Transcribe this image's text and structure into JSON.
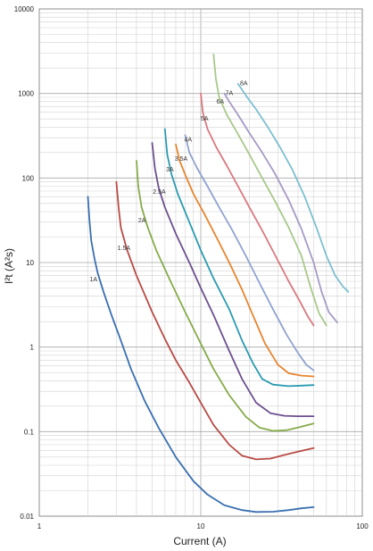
{
  "chart_data": {
    "type": "line",
    "title": "",
    "xlabel": "Current (A)",
    "ylabel": "I²t (A²s)",
    "x_scale": "log",
    "y_scale": "log",
    "xlim": [
      1,
      100
    ],
    "ylim": [
      0.01,
      10000
    ],
    "x_ticks": [
      "1",
      "10",
      "100"
    ],
    "y_ticks": [
      "0.01",
      "0.1",
      "1",
      "10",
      "100",
      "1000",
      "10000"
    ],
    "grid": true,
    "legend": "none",
    "series": [
      {
        "name": "1A",
        "color": "#3a6fb0",
        "label_at": [
          2.05,
          6.0
        ],
        "points": [
          [
            2.0,
            60
          ],
          [
            2.05,
            30
          ],
          [
            2.1,
            18
          ],
          [
            2.2,
            11
          ],
          [
            2.3,
            7.5
          ],
          [
            2.5,
            4.5
          ],
          [
            2.8,
            2.4
          ],
          [
            3.2,
            1.2
          ],
          [
            3.7,
            0.55
          ],
          [
            4.5,
            0.23
          ],
          [
            5.5,
            0.11
          ],
          [
            7,
            0.05
          ],
          [
            9,
            0.026
          ],
          [
            11,
            0.018
          ],
          [
            14,
            0.0135
          ],
          [
            18,
            0.0118
          ],
          [
            22,
            0.0112
          ],
          [
            28,
            0.0113
          ],
          [
            35,
            0.0118
          ],
          [
            42,
            0.0124
          ],
          [
            50,
            0.0128
          ]
        ]
      },
      {
        "name": "1.5A",
        "color": "#b94a44",
        "label_at": [
          3.05,
          14.0
        ],
        "points": [
          [
            3.0,
            90
          ],
          [
            3.1,
            45
          ],
          [
            3.2,
            26
          ],
          [
            3.5,
            14
          ],
          [
            4,
            7
          ],
          [
            5,
            2.6
          ],
          [
            6,
            1.25
          ],
          [
            7,
            0.7
          ],
          [
            8.5,
            0.38
          ],
          [
            10,
            0.22
          ],
          [
            12,
            0.12
          ],
          [
            15,
            0.07
          ],
          [
            18,
            0.052
          ],
          [
            22,
            0.047
          ],
          [
            27,
            0.048
          ],
          [
            33,
            0.053
          ],
          [
            40,
            0.058
          ],
          [
            50,
            0.064
          ]
        ]
      },
      {
        "name": "2A",
        "color": "#86ab4a",
        "label_at": [
          4.1,
          30.0
        ],
        "points": [
          [
            4.0,
            160
          ],
          [
            4.1,
            80
          ],
          [
            4.3,
            45
          ],
          [
            4.7,
            26
          ],
          [
            5.3,
            14
          ],
          [
            6.5,
            6
          ],
          [
            8,
            2.6
          ],
          [
            10,
            1.1
          ],
          [
            12,
            0.55
          ],
          [
            15,
            0.27
          ],
          [
            19,
            0.15
          ],
          [
            23,
            0.112
          ],
          [
            28,
            0.102
          ],
          [
            34,
            0.104
          ],
          [
            41,
            0.113
          ],
          [
            50,
            0.125
          ]
        ]
      },
      {
        "name": "2.5A",
        "color": "#6c4f8e",
        "label_at": [
          5.05,
          65.0
        ],
        "points": [
          [
            5.0,
            260
          ],
          [
            5.2,
            130
          ],
          [
            5.5,
            75
          ],
          [
            6,
            45
          ],
          [
            7,
            22
          ],
          [
            8.5,
            10
          ],
          [
            10,
            5
          ],
          [
            12,
            2.4
          ],
          [
            15,
            0.9
          ],
          [
            18,
            0.42
          ],
          [
            22,
            0.22
          ],
          [
            27,
            0.165
          ],
          [
            33,
            0.154
          ],
          [
            40,
            0.152
          ],
          [
            50,
            0.152
          ]
        ]
      },
      {
        "name": "3A",
        "color": "#2b9ab0",
        "label_at": [
          6.1,
          120.0
        ],
        "points": [
          [
            6.0,
            380
          ],
          [
            6.2,
            190
          ],
          [
            6.6,
            110
          ],
          [
            7.2,
            65
          ],
          [
            8.5,
            30
          ],
          [
            10,
            14
          ],
          [
            12,
            6.5
          ],
          [
            15,
            2.8
          ],
          [
            18,
            1.2
          ],
          [
            21,
            0.65
          ],
          [
            24,
            0.42
          ],
          [
            28,
            0.36
          ],
          [
            35,
            0.345
          ],
          [
            42,
            0.35
          ],
          [
            50,
            0.355
          ]
        ]
      },
      {
        "name": "3.5A",
        "color": "#e8842e",
        "label_at": [
          6.9,
          160.0
        ],
        "points": [
          [
            7.0,
            250
          ],
          [
            7.4,
            160
          ],
          [
            8,
            110
          ],
          [
            9,
            65
          ],
          [
            10.5,
            38
          ],
          [
            12.5,
            20
          ],
          [
            15,
            10
          ],
          [
            18,
            4.8
          ],
          [
            21,
            2.4
          ],
          [
            25,
            1.1
          ],
          [
            30,
            0.62
          ],
          [
            35,
            0.49
          ],
          [
            42,
            0.46
          ],
          [
            50,
            0.45
          ]
        ]
      },
      {
        "name": "4A",
        "color": "#8fa3d0",
        "label_at": [
          7.9,
          270.0
        ],
        "points": [
          [
            8.0,
            320
          ],
          [
            8.5,
            200
          ],
          [
            9.5,
            130
          ],
          [
            11,
            80
          ],
          [
            13,
            45
          ],
          [
            15.5,
            25
          ],
          [
            19,
            12
          ],
          [
            23,
            5.8
          ],
          [
            28,
            2.8
          ],
          [
            34,
            1.4
          ],
          [
            40,
            0.85
          ],
          [
            45,
            0.62
          ],
          [
            50,
            0.53
          ]
        ]
      },
      {
        "name": "5A",
        "color": "#d9787f",
        "label_at": [
          10.0,
          480.0
        ],
        "points": [
          [
            10.0,
            1000
          ],
          [
            10.3,
            600
          ],
          [
            11,
            380
          ],
          [
            12.5,
            230
          ],
          [
            14.5,
            140
          ],
          [
            17,
            80
          ],
          [
            20,
            45
          ],
          [
            24,
            24
          ],
          [
            29,
            12
          ],
          [
            35,
            6
          ],
          [
            41,
            3.5
          ],
          [
            46,
            2.3
          ],
          [
            50,
            1.8
          ]
        ]
      },
      {
        "name": "6A",
        "color": "#a8c98a",
        "label_at": [
          12.5,
          760.0
        ],
        "points": [
          [
            12.0,
            2900
          ],
          [
            12.4,
            1500
          ],
          [
            13,
            900
          ],
          [
            14.5,
            560
          ],
          [
            17,
            330
          ],
          [
            20,
            190
          ],
          [
            24,
            100
          ],
          [
            29,
            52
          ],
          [
            35,
            26
          ],
          [
            42,
            12
          ],
          [
            48,
            5
          ],
          [
            54,
            2.5
          ],
          [
            60,
            1.8
          ]
        ]
      },
      {
        "name": "7A",
        "color": "#a69ac6",
        "label_at": [
          14.2,
          960.0
        ],
        "points": [
          [
            14.0,
            1000
          ],
          [
            15,
            800
          ],
          [
            17,
            560
          ],
          [
            20,
            340
          ],
          [
            24,
            200
          ],
          [
            29,
            110
          ],
          [
            35,
            55
          ],
          [
            42,
            25
          ],
          [
            50,
            10
          ],
          [
            56,
            4.5
          ],
          [
            62,
            2.6
          ],
          [
            70,
            1.95
          ]
        ]
      },
      {
        "name": "8A",
        "color": "#7dbfd0",
        "label_at": [
          17.5,
          1250.0
        ],
        "points": [
          [
            17.0,
            1300
          ],
          [
            19,
            950
          ],
          [
            22,
            650
          ],
          [
            26,
            400
          ],
          [
            31,
            230
          ],
          [
            37,
            125
          ],
          [
            44,
            60
          ],
          [
            52,
            26
          ],
          [
            60,
            12
          ],
          [
            68,
            7
          ],
          [
            76,
            5.2
          ],
          [
            82,
            4.5
          ]
        ]
      }
    ]
  }
}
